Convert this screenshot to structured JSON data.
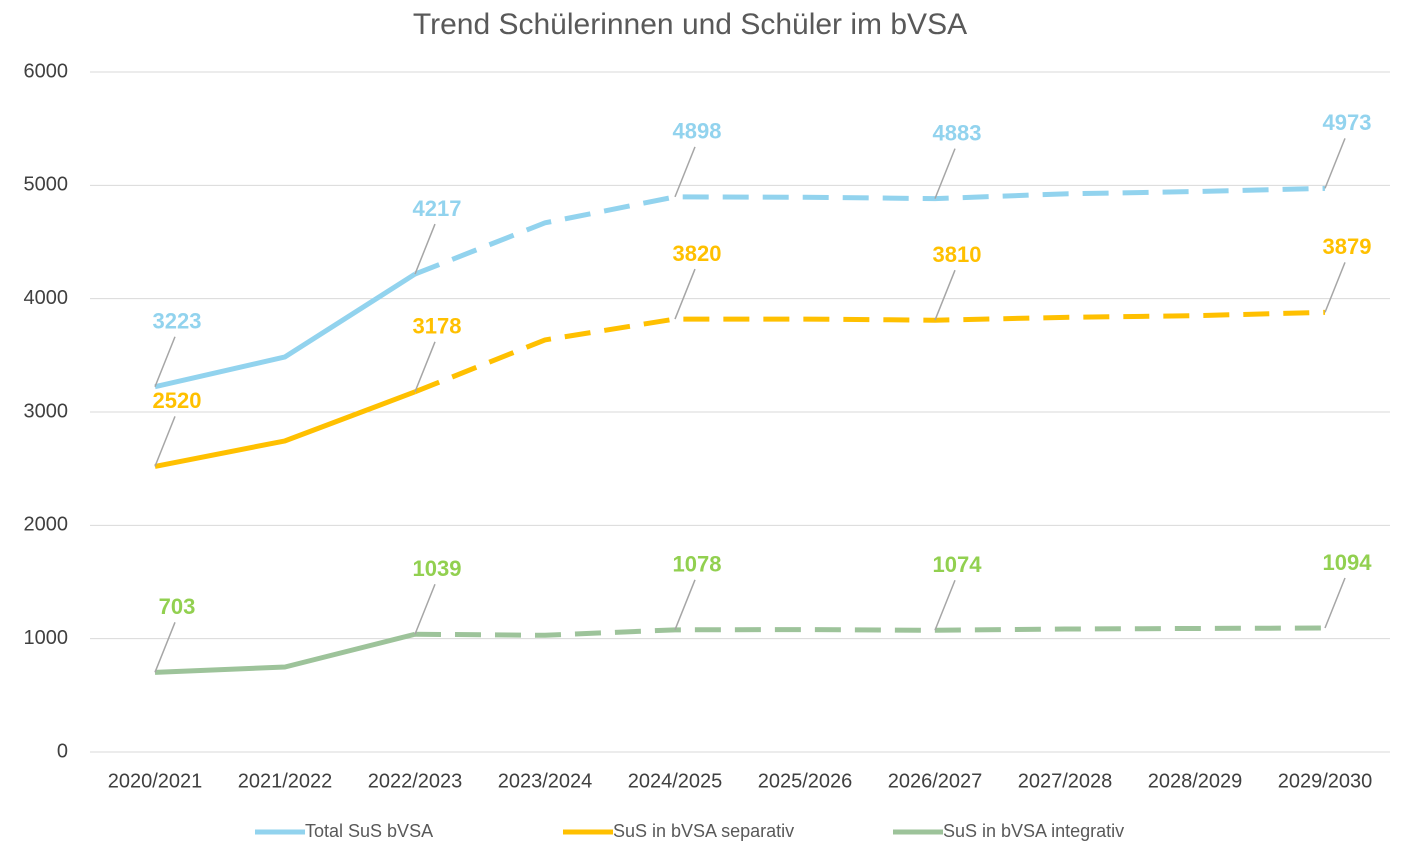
{
  "chart_data": {
    "type": "line",
    "title": "Trend Schülerinnen und Schüler im bVSA",
    "categories": [
      "2020/2021",
      "2021/2022",
      "2022/2023",
      "2023/2024",
      "2024/2025",
      "2025/2026",
      "2026/2027",
      "2027/2028",
      "2028/2029",
      "2029/2030"
    ],
    "series": [
      {
        "name": "Total SuS bVSA",
        "color": "#92d3ee",
        "label_color": "#92d3ee",
        "values": [
          3223,
          3486,
          4217,
          4669,
          4898,
          4895,
          4883,
          4925,
          4945,
          4973
        ],
        "value_labels": [
          "3223",
          null,
          "4217",
          null,
          "4898",
          null,
          "4883",
          null,
          null,
          "4973"
        ]
      },
      {
        "name": "SuS in bVSA separativ",
        "color": "#ffc000",
        "label_color": "#ffc000",
        "values": [
          2520,
          2745,
          3178,
          3636,
          3820,
          3820,
          3810,
          3835,
          3850,
          3879
        ],
        "value_labels": [
          "2520",
          null,
          "3178",
          null,
          "3820",
          null,
          "3810",
          null,
          null,
          "3879"
        ]
      },
      {
        "name": "SuS in bVSA integrativ",
        "color": "#9dc39a",
        "label_color": "#92d050",
        "values": [
          703,
          750,
          1039,
          1030,
          1078,
          1080,
          1074,
          1085,
          1090,
          1094
        ],
        "value_labels": [
          "703",
          null,
          "1039",
          null,
          "1078",
          null,
          "1074",
          null,
          null,
          "1094"
        ]
      }
    ],
    "dashed_from_index": 2,
    "ylim": [
      0,
      6000
    ],
    "yticks": [
      0,
      1000,
      2000,
      3000,
      4000,
      5000,
      6000
    ],
    "grid": true,
    "legend": "bottom"
  }
}
